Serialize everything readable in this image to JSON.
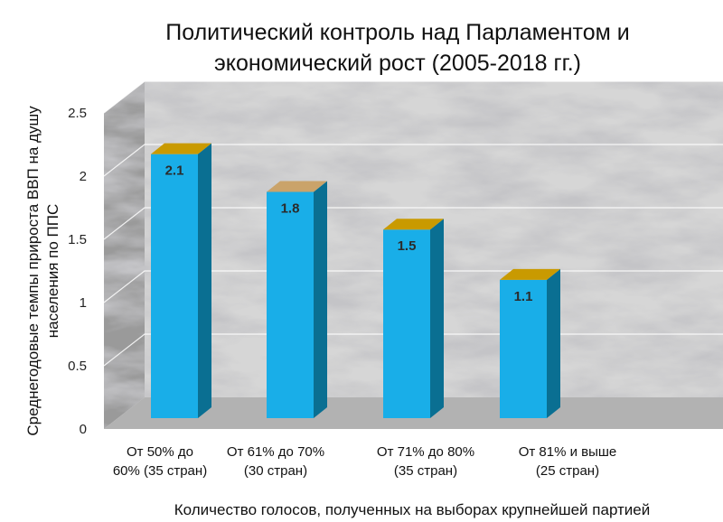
{
  "chart_data": {
    "type": "bar",
    "title": [
      "Политический контроль над Парламентом и",
      "экономический рост (2005-2018 гг.)"
    ],
    "ylabel": [
      "Среднегодовые темпы прироста ВВП на душу",
      "населения по ППС"
    ],
    "xlabel": "Количество голосов, полученных на выборах крупнейшей партией",
    "categories": [
      [
        "От 50% до",
        "60% (35 стран)"
      ],
      [
        "От 61% до 70%",
        "(30 стран)"
      ],
      [
        "От 71% до 80%",
        "(35 стран)"
      ],
      [
        "От 81% и выше",
        "(25 стран)"
      ]
    ],
    "values": [
      2.1,
      1.8,
      1.5,
      1.1
    ],
    "data_labels": [
      "2.1",
      "1.8",
      "1.5",
      "1.1"
    ],
    "y_ticks": [
      "0",
      "0.5",
      "1",
      "1.5",
      "2",
      "2.5"
    ],
    "ylim": [
      0,
      2.5
    ],
    "grid": true,
    "legend": "none",
    "colors": {
      "bar_front": "#19aee8",
      "bar_side": "#0a6f92",
      "bar_top": [
        "#c99a00",
        "#caa36a",
        "#c99a00",
        "#c99a00"
      ],
      "wall": "#d6d6d6",
      "wall_side": "#9a9a9a",
      "floor": "#b2b2b2",
      "gridline": "#ffffff"
    }
  }
}
